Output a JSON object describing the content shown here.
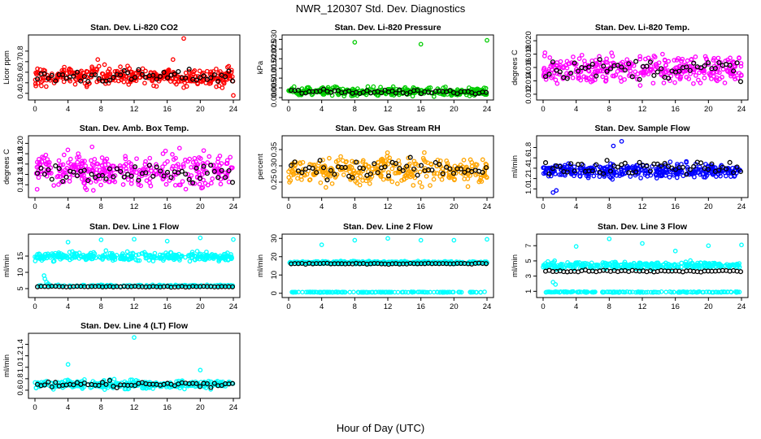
{
  "title": "NWR_120307  Std. Dev. Diagnostics",
  "xlabel": "Hour of Day (UTC)",
  "chart_data": [
    {
      "type": "scatter",
      "title": "Stan. Dev. Li-820 CO2",
      "ylabel": "Licor ppm",
      "xlim": [
        0,
        24
      ],
      "ylim": [
        0.36,
        0.93
      ],
      "xticks": [
        0,
        4,
        8,
        12,
        16,
        20,
        24
      ],
      "yticks": [
        0.4,
        0.5,
        0.6,
        0.7,
        0.8
      ],
      "ytick_labels": [
        "0.4",
        "0.5",
        "0.6",
        "0.7",
        "0.8"
      ],
      "colors": {
        "main": "#ff0000",
        "check": "#000000"
      },
      "main": {
        "center": 0.56,
        "spread": 0.06,
        "min": 0.42,
        "max": 0.75
      },
      "check": {
        "center": 0.56,
        "spread": 0.05
      },
      "outliers": [
        [
          18,
          0.92
        ],
        [
          24,
          0.38
        ],
        [
          7.6,
          0.72
        ],
        [
          16.7,
          0.72
        ]
      ]
    },
    {
      "type": "scatter",
      "title": "Stan. Dev. Li-820 Pressure",
      "ylabel": "kPa",
      "xlim": [
        0,
        24
      ],
      "ylim": [
        0,
        0.031
      ],
      "xticks": [
        0,
        4,
        8,
        12,
        16,
        20,
        24
      ],
      "yticks": [
        0,
        0.005,
        0.01,
        0.015,
        0.02,
        0.025,
        0.03
      ],
      "ytick_labels": [
        "0.000",
        "0.005",
        "0.010",
        "0.015",
        "0.020",
        "0.025",
        "0.030"
      ],
      "colors": {
        "main": "#00cc00",
        "check": "#000000"
      },
      "main": {
        "center": 0.003,
        "spread": 0.0015,
        "min": 0.0005,
        "max": 0.009
      },
      "check": {
        "center": 0.003,
        "spread": 0.001
      },
      "outliers": [
        [
          8,
          0.0285
        ],
        [
          16,
          0.0275
        ],
        [
          24,
          0.0295
        ]
      ]
    },
    {
      "type": "scatter",
      "title": "Stan. Dev. Li-820 Temp.",
      "ylabel": "degrees C",
      "xlim": [
        0,
        24
      ],
      "ylim": [
        0.0115,
        0.0205
      ],
      "xticks": [
        0,
        4,
        8,
        12,
        16,
        20,
        24
      ],
      "yticks": [
        0.012,
        0.014,
        0.016,
        0.018,
        0.02
      ],
      "ytick_labels": [
        "0.012",
        "0.014",
        "0.016",
        "0.018",
        "0.020"
      ],
      "colors": {
        "main": "#ff00ff",
        "check": "#000000"
      },
      "main": {
        "center": 0.0158,
        "spread": 0.0015,
        "min": 0.0118,
        "max": 0.0203
      },
      "check": {
        "center": 0.0158,
        "spread": 0.0012
      },
      "outliers": []
    },
    {
      "type": "scatter",
      "title": "Stan. Dev. Amb. Box Temp.",
      "ylabel": "degrees C",
      "xlim": [
        0,
        24
      ],
      "ylim": [
        0.1,
        0.21
      ],
      "xticks": [
        0,
        4,
        8,
        12,
        16,
        20,
        24
      ],
      "yticks": [
        0.12,
        0.14,
        0.16,
        0.18,
        0.2
      ],
      "ytick_labels": [
        "0.12",
        "0.14",
        "0.16",
        "0.18",
        "0.20"
      ],
      "colors": {
        "main": "#ff00ff",
        "check": "#000000"
      },
      "main": {
        "center": 0.148,
        "spread": 0.022,
        "min": 0.105,
        "max": 0.205
      },
      "check": {
        "center": 0.14,
        "spread": 0.015
      },
      "outliers": []
    },
    {
      "type": "scatter",
      "title": "Stan. Dev. Gas Stream RH",
      "ylabel": "percent",
      "xlim": [
        0,
        24
      ],
      "ylim": [
        0.21,
        0.385
      ],
      "xticks": [
        0,
        4,
        8,
        12,
        16,
        20,
        24
      ],
      "yticks": [
        0.25,
        0.3,
        0.35
      ],
      "ytick_labels": [
        "0.25",
        "0.30",
        "0.35"
      ],
      "colors": {
        "main": "#ffa500",
        "check": "#000000"
      },
      "main": {
        "center": 0.285,
        "spread": 0.028,
        "min": 0.22,
        "max": 0.38
      },
      "check": {
        "center": 0.29,
        "spread": 0.022
      },
      "outliers": []
    },
    {
      "type": "scatter",
      "title": "Stan. Dev. Sample Flow",
      "ylabel": "ml/min",
      "xlim": [
        0,
        24
      ],
      "ylim": [
        0.88,
        1.98
      ],
      "xticks": [
        0,
        4,
        8,
        12,
        16,
        20,
        24
      ],
      "yticks": [
        1.0,
        1.2,
        1.4,
        1.6,
        1.8
      ],
      "ytick_labels": [
        "1.0",
        "1.2",
        "1.4",
        "1.6",
        "1.8"
      ],
      "colors": {
        "main": "#0000ff",
        "check": "#000000"
      },
      "main": {
        "center": 1.35,
        "spread": 0.09,
        "min": 1.05,
        "max": 1.65
      },
      "check": {
        "center": 1.42,
        "spread": 0.12
      },
      "outliers": [
        [
          1.2,
          0.93
        ],
        [
          1.6,
          0.97
        ],
        [
          9.5,
          1.92
        ],
        [
          8.5,
          1.83
        ]
      ]
    },
    {
      "type": "scatter",
      "title": "Stan. Dev. Line 1 Flow",
      "ylabel": "ml/min",
      "xlim": [
        0,
        24
      ],
      "ylim": [
        3,
        21
      ],
      "xticks": [
        0,
        4,
        8,
        12,
        16,
        20,
        24
      ],
      "yticks": [
        5,
        10,
        15
      ],
      "ytick_labels": [
        "5",
        "10",
        "15"
      ],
      "colors": {
        "main": "#00ffff",
        "check": "#000000"
      },
      "main": {
        "center": 14.8,
        "spread": 0.9,
        "min": 12.5,
        "max": 17
      },
      "check": {
        "center": 5.6,
        "spread": 0.12
      },
      "extra_band": {
        "center": 5.9,
        "spread": 0.25
      },
      "outliers": [
        [
          4,
          19.3
        ],
        [
          8,
          20
        ],
        [
          12,
          20.2
        ],
        [
          16,
          19.6
        ],
        [
          20,
          20.6
        ],
        [
          24,
          20.1
        ],
        [
          1.2,
          8
        ],
        [
          1.4,
          7
        ],
        [
          1.6,
          6.5
        ],
        [
          1.1,
          9
        ]
      ]
    },
    {
      "type": "scatter",
      "title": "Stan. Dev. Line 2 Flow",
      "ylabel": "ml/min",
      "xlim": [
        0,
        24
      ],
      "ylim": [
        -1,
        31
      ],
      "xticks": [
        0,
        4,
        8,
        12,
        16,
        20,
        24
      ],
      "yticks": [
        0,
        10,
        20,
        30
      ],
      "ytick_labels": [
        "0",
        "10",
        "20",
        "30"
      ],
      "colors": {
        "main": "#00ffff",
        "check": "#000000"
      },
      "main": {
        "center": 16.8,
        "spread": 0.5,
        "min": 15.5,
        "max": 18
      },
      "check": {
        "center": 16.2,
        "spread": 0.25
      },
      "extra_band": {
        "center": 0.6,
        "spread": 0.15
      },
      "outliers": [
        [
          4,
          26.5
        ],
        [
          8,
          29
        ],
        [
          12,
          30
        ],
        [
          16,
          29
        ],
        [
          20,
          29
        ],
        [
          24,
          29.5
        ]
      ]
    },
    {
      "type": "scatter",
      "title": "Stan. Dev. Line 3 Flow",
      "ylabel": "ml/min",
      "xlim": [
        0,
        24
      ],
      "ylim": [
        0.5,
        8.2
      ],
      "xticks": [
        0,
        4,
        8,
        12,
        16,
        20,
        24
      ],
      "yticks": [
        1,
        3,
        5,
        7
      ],
      "ytick_labels": [
        "1",
        "3",
        "5",
        "7"
      ],
      "colors": {
        "main": "#00ffff",
        "check": "#000000"
      },
      "main": {
        "center": 4.4,
        "spread": 0.3,
        "min": 3.6,
        "max": 5.2
      },
      "check": {
        "center": 3.65,
        "spread": 0.12
      },
      "extra_band": {
        "center": 0.9,
        "spread": 0.06
      },
      "outliers": [
        [
          4,
          6.9
        ],
        [
          8,
          7.9
        ],
        [
          12,
          7.3
        ],
        [
          16,
          6.3
        ],
        [
          20,
          7
        ],
        [
          24,
          7.1
        ],
        [
          1.2,
          2.2
        ],
        [
          1.5,
          1.9
        ]
      ]
    },
    {
      "type": "scatter",
      "title": "Stan. Dev. Line 4 (LT) Flow",
      "ylabel": "ml/min",
      "xlim": [
        0,
        24
      ],
      "ylim": [
        0.5,
        1.55
      ],
      "xticks": [
        0,
        4,
        8,
        12,
        16,
        20,
        24
      ],
      "yticks": [
        0.6,
        0.8,
        1.0,
        1.2,
        1.4
      ],
      "ytick_labels": [
        "0.6",
        "0.8",
        "1.0",
        "1.2",
        "1.4"
      ],
      "colors": {
        "main": "#00ffff",
        "check": "#000000"
      },
      "main": {
        "center": 0.7,
        "spread": 0.05,
        "min": 0.56,
        "max": 0.85
      },
      "check": {
        "center": 0.7,
        "spread": 0.05
      },
      "outliers": [
        [
          12,
          1.52
        ],
        [
          4,
          1.05
        ],
        [
          20,
          0.95
        ]
      ]
    }
  ]
}
